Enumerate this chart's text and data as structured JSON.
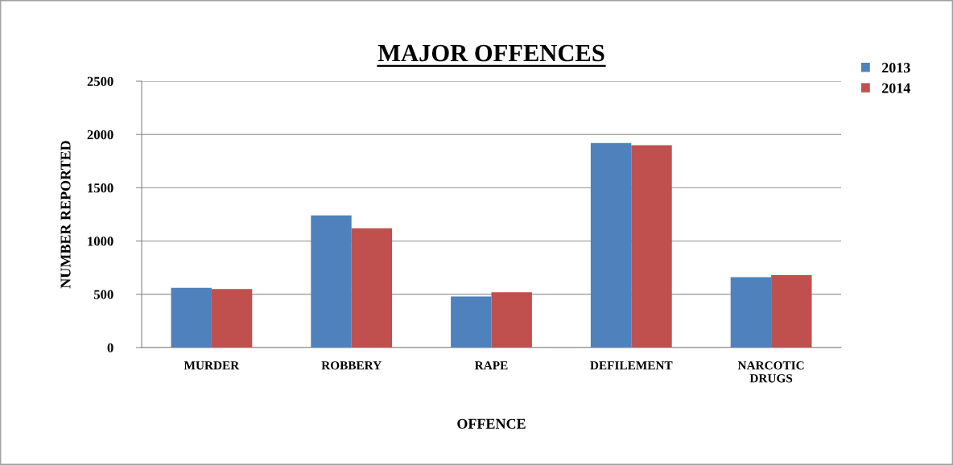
{
  "chart_data": {
    "type": "bar",
    "title": "MAJOR OFFENCES",
    "xlabel": "OFFENCE",
    "ylabel": "NUMBER REPORTED",
    "categories": [
      "MURDER",
      "ROBBERY",
      "RAPE",
      "DEFILEMENT",
      "NARCOTIC\nDRUGS"
    ],
    "series": [
      {
        "name": "2013",
        "color": "#4f81bd",
        "values": [
          560,
          1240,
          480,
          1920,
          660
        ]
      },
      {
        "name": "2014",
        "color": "#c0504d",
        "values": [
          550,
          1120,
          520,
          1900,
          680
        ]
      }
    ],
    "ylim": [
      0,
      2500
    ],
    "yticks": [
      0,
      500,
      1000,
      1500,
      2000,
      2500
    ],
    "grid": "y",
    "legend": "top right"
  }
}
